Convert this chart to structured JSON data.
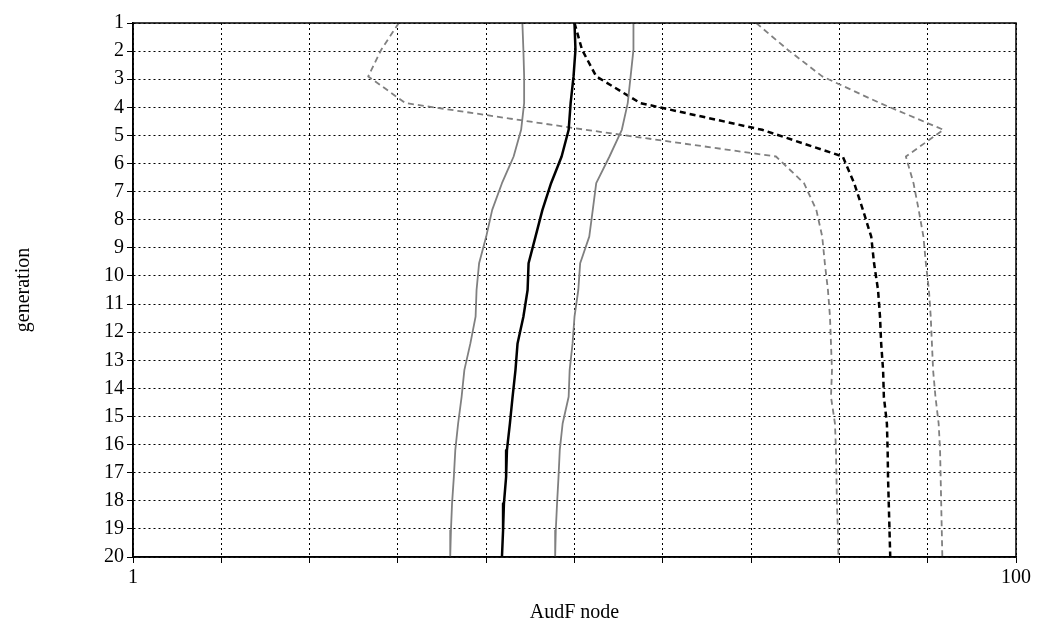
{
  "chart_data": {
    "type": "line",
    "xlabel": "AudF node",
    "ylabel": "generation",
    "log": "x",
    "grid": true,
    "xlim": [
      1,
      100
    ],
    "xticks": [
      1,
      {
        "value": 1.585,
        "label": null
      },
      {
        "value": 2.512,
        "label": null
      },
      {
        "value": 3.981,
        "label": null
      },
      {
        "value": 6.31,
        "label": null
      },
      {
        "value": 10,
        "label": null
      },
      {
        "value": 15.85,
        "label": null
      },
      {
        "value": 25.12,
        "label": null
      },
      {
        "value": 39.81,
        "label": null
      },
      {
        "value": 63.1,
        "label": null
      },
      100
    ],
    "ylim": [
      20,
      1
    ],
    "yticks": [
      1,
      2,
      3,
      4,
      5,
      6,
      7,
      8,
      9,
      10,
      11,
      12,
      13,
      14,
      15,
      16,
      17,
      18,
      19,
      20
    ],
    "series": [
      {
        "color": "#000000",
        "line_style": "solid",
        "x": [
          10,
          10.05,
          9.95,
          9.8,
          9.7,
          9.35,
          8.85,
          8.46,
          8.16,
          7.87,
          7.83,
          7.66,
          7.43,
          7.35,
          7.24,
          7.14,
          7.03,
          7.0,
          6.92,
          6.89,
          6.85
        ],
        "values": [
          1,
          1.95,
          2.9,
          3.85,
          4.8,
          5.75,
          6.7,
          7.65,
          8.6,
          9.55,
          10.5,
          11.45,
          12.4,
          13.35,
          14.3,
          15.25,
          16.2,
          17.15,
          18.1,
          19.05,
          20
        ]
      },
      {
        "color": "#808080",
        "line_style": "solid",
        "x": [
          7.62,
          7.66,
          7.69,
          7.69,
          7.57,
          7.28,
          6.85,
          6.51,
          6.31,
          6.08,
          6.0,
          5.97,
          5.81,
          5.63,
          5.55,
          5.45,
          5.37,
          5.33,
          5.28,
          5.25,
          5.23
        ],
        "values": [
          1,
          1.95,
          2.9,
          3.85,
          4.8,
          5.75,
          6.7,
          7.65,
          8.6,
          9.55,
          10.5,
          11.45,
          12.4,
          13.35,
          14.3,
          15.25,
          16.2,
          17.15,
          18.1,
          19.05,
          20
        ]
      },
      {
        "color": "#808080",
        "line_style": "solid",
        "x": [
          13.6,
          13.6,
          13.4,
          13.2,
          12.8,
          12.0,
          11.2,
          11.0,
          10.8,
          10.3,
          10.2,
          10.0,
          9.9,
          9.75,
          9.7,
          9.4,
          9.26,
          9.2,
          9.13,
          9.07,
          9.04
        ],
        "values": [
          1,
          1.95,
          2.9,
          3.85,
          4.8,
          5.75,
          6.7,
          7.65,
          8.6,
          9.55,
          10.5,
          11.45,
          12.4,
          13.35,
          14.3,
          15.25,
          16.2,
          17.15,
          18.1,
          19.05,
          20
        ]
      },
      {
        "color": "#000000",
        "line_style": "dashed",
        "x": [
          10,
          10.4,
          11.2,
          14.1,
          26.6,
          40.5,
          43,
          45,
          47,
          47.7,
          48.7,
          49.2,
          49.5,
          50,
          50.2,
          51,
          51.2,
          51.3,
          51.5,
          51.7,
          51.9
        ],
        "values": [
          1,
          1.95,
          2.9,
          3.85,
          4.8,
          5.75,
          6.7,
          7.65,
          8.6,
          9.55,
          10.5,
          11.45,
          12.4,
          13.35,
          14.3,
          15.25,
          16.2,
          17.15,
          18.1,
          19.05,
          20
        ]
      },
      {
        "color": "#808080",
        "line_style": "dashed",
        "x": [
          4,
          3.65,
          3.41,
          4.14,
          10.6,
          28.6,
          33.1,
          35.3,
          36.4,
          36.9,
          37.5,
          37.9,
          38.1,
          38.3,
          38.1,
          38.9,
          39.1,
          39.2,
          39.3,
          39.5,
          39.6
        ],
        "values": [
          1,
          1.95,
          2.9,
          3.85,
          4.8,
          5.75,
          6.7,
          7.65,
          8.6,
          9.55,
          10.5,
          11.45,
          12.4,
          13.35,
          14.3,
          15.25,
          16.2,
          17.15,
          18.1,
          19.05,
          20
        ]
      },
      {
        "color": "#808080",
        "line_style": "dashed",
        "x": [
          25.8,
          30.4,
          36.4,
          49.2,
          68.5,
          56.3,
          58.6,
          60.2,
          61.7,
          62.5,
          63.5,
          64.1,
          64.5,
          64.9,
          65.7,
          66.8,
          67.3,
          67.5,
          67.7,
          67.9,
          68.1
        ],
        "values": [
          1,
          1.95,
          2.9,
          3.85,
          4.8,
          5.75,
          6.7,
          7.65,
          8.6,
          9.55,
          10.5,
          11.45,
          12.4,
          13.35,
          14.3,
          15.25,
          16.2,
          17.15,
          18.1,
          19.05,
          20
        ]
      }
    ]
  }
}
